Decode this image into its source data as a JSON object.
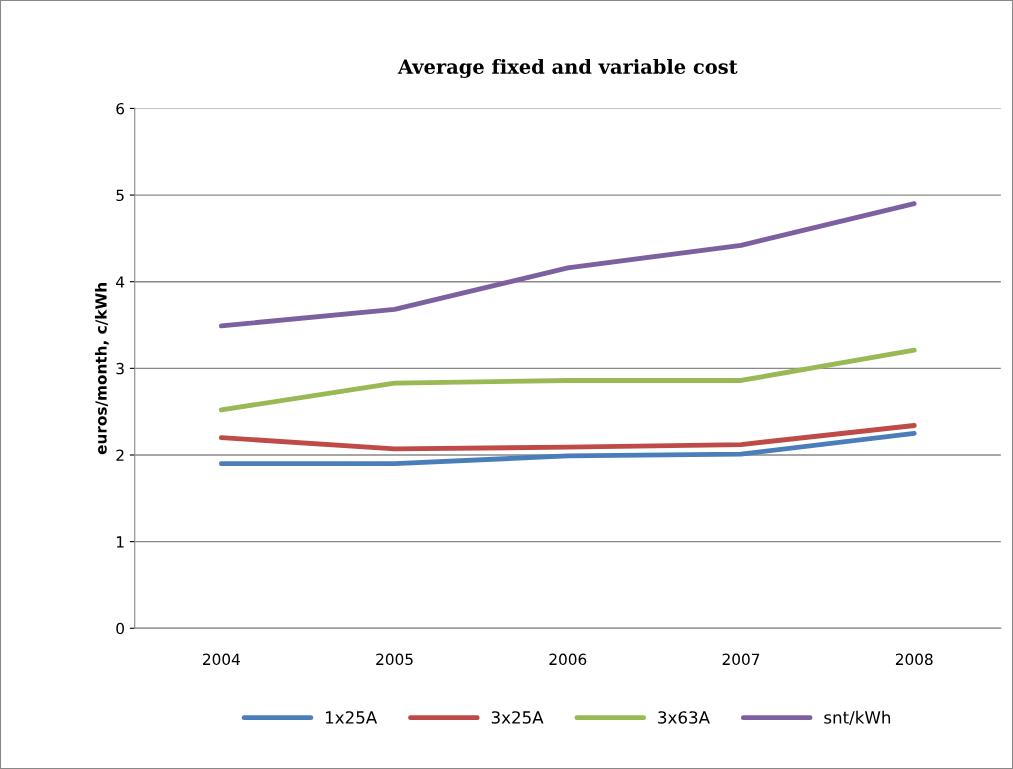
{
  "chart_data": {
    "type": "line",
    "title": "Average fixed and variable cost",
    "ylabel": "euros/month, c/kWh",
    "categories": [
      "2004",
      "2005",
      "2006",
      "2007",
      "2008"
    ],
    "series": [
      {
        "name": "1x25A",
        "color": "#4a7ebb",
        "values": [
          1.9,
          1.9,
          1.99,
          2.01,
          2.25
        ]
      },
      {
        "name": "3x25A",
        "color": "#be4b48",
        "values": [
          2.2,
          2.07,
          2.09,
          2.12,
          2.34
        ]
      },
      {
        "name": "3x63A",
        "color": "#98b954",
        "values": [
          2.52,
          2.83,
          2.86,
          2.86,
          3.21
        ]
      },
      {
        "name": "snt/kWh",
        "color": "#7d60a0",
        "values": [
          3.49,
          3.68,
          4.16,
          4.42,
          4.9
        ]
      }
    ],
    "ylim": [
      0,
      6
    ],
    "yticks": [
      0,
      1,
      2,
      3,
      4,
      5,
      6
    ],
    "grid": "y",
    "legend": "bottom",
    "marker": "none",
    "line_style": "solid"
  }
}
